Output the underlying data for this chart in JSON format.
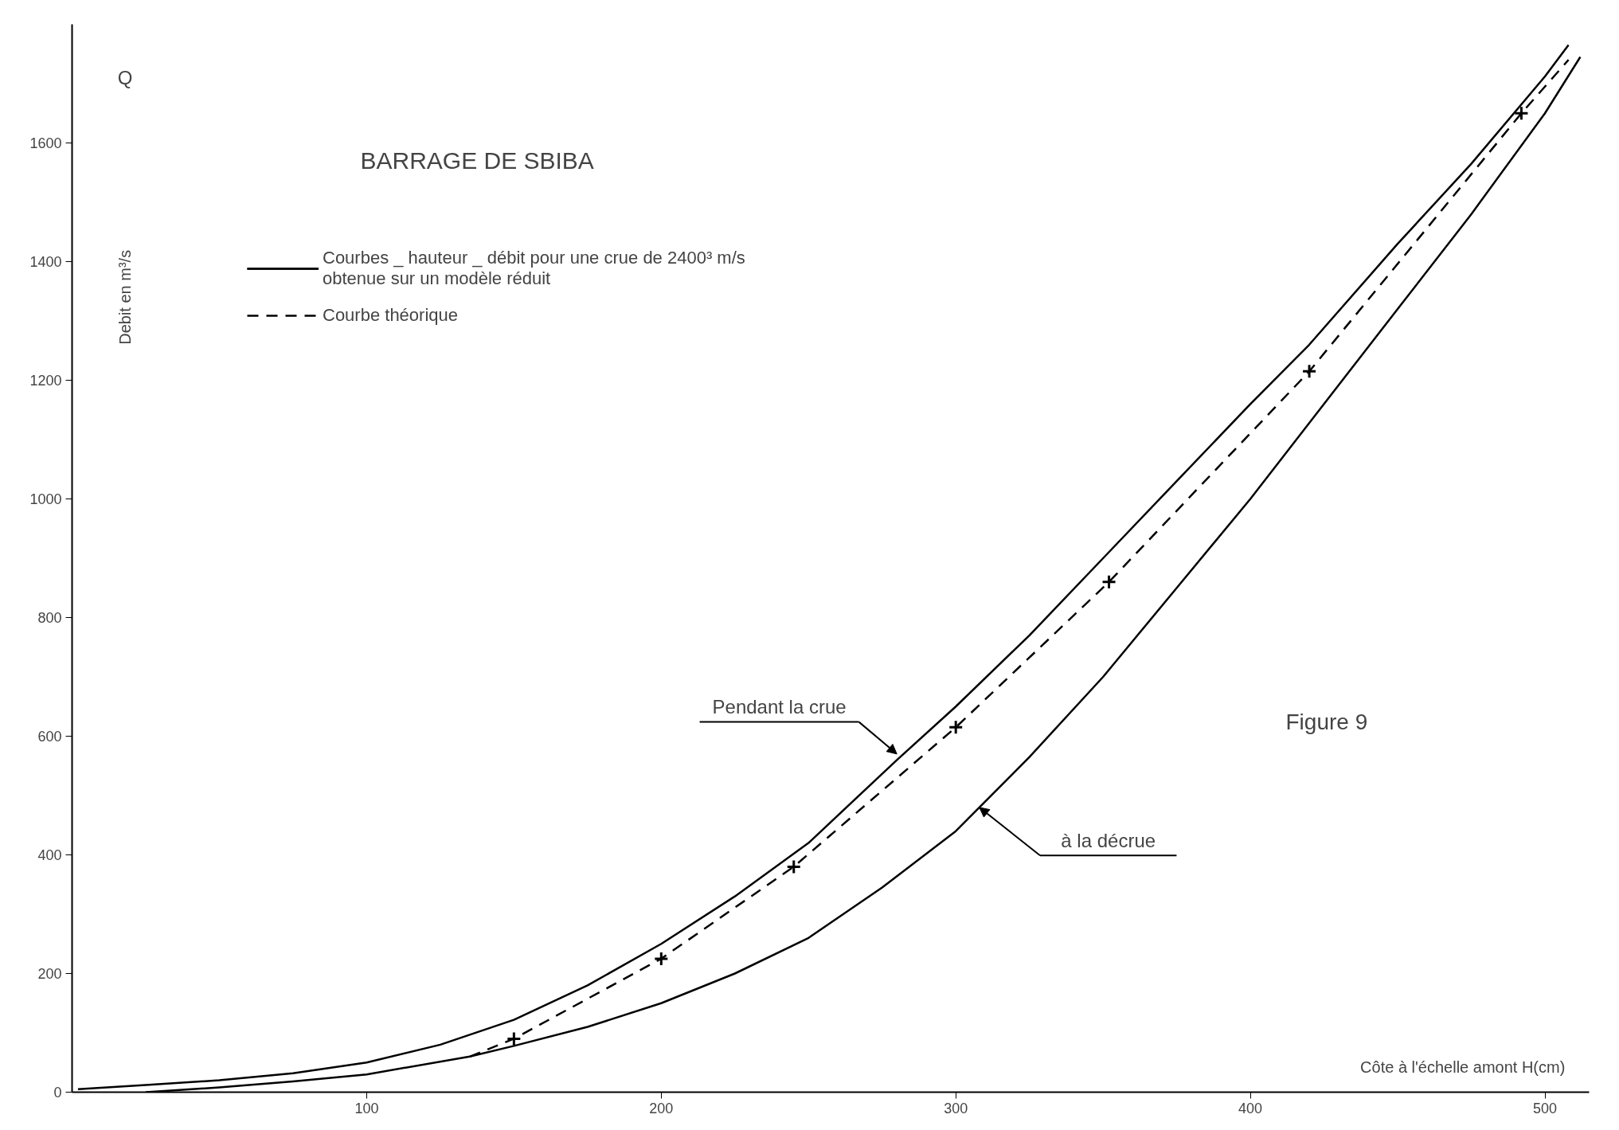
{
  "chart_data": {
    "type": "line",
    "title": "BARRAGE DE SBIBA",
    "xlabel": "Côte à l'échelle amont   H(cm)",
    "ylabel": "Debit en m³/s",
    "xlim": [
      0,
      515
    ],
    "ylim": [
      0,
      1800
    ],
    "xticks": [
      100,
      200,
      300,
      400,
      500
    ],
    "yticks": [
      0,
      200,
      400,
      600,
      800,
      1000,
      1200,
      1400,
      1600
    ],
    "grid": false,
    "legend": "top left",
    "series": [
      {
        "color": "#000000",
        "line_style": "solid",
        "x": [
          2,
          25,
          50,
          75,
          100,
          125,
          150,
          175,
          200,
          225,
          250,
          280,
          300,
          325,
          350,
          375,
          400,
          420,
          450,
          475,
          500,
          508
        ],
        "values": [
          5,
          12,
          20,
          32,
          50,
          80,
          122,
          180,
          250,
          330,
          420,
          560,
          650,
          770,
          900,
          1030,
          1160,
          1260,
          1430,
          1565,
          1712,
          1765
        ]
      },
      {
        "color": "#000000",
        "line_style": "solid",
        "x": [
          25,
          50,
          75,
          100,
          135,
          150,
          175,
          200,
          225,
          250,
          275,
          300,
          325,
          350,
          375,
          400,
          425,
          450,
          475,
          500,
          512
        ],
        "values": [
          0,
          8,
          18,
          30,
          60,
          78,
          110,
          150,
          200,
          260,
          345,
          440,
          565,
          700,
          850,
          1000,
          1160,
          1320,
          1480,
          1650,
          1745
        ]
      },
      {
        "name": "Courbe théorique",
        "color": "#000000",
        "line_style": "dashed",
        "x": [
          135,
          150,
          200,
          245,
          300,
          352,
          420,
          492,
          508
        ],
        "values": [
          60,
          90,
          225,
          380,
          615,
          860,
          1215,
          1650,
          1740
        ]
      },
      {
        "type": "scatter",
        "marker": "cross",
        "color": "#000000",
        "x": [
          150,
          200,
          245,
          300,
          352,
          420,
          492
        ],
        "values": [
          90,
          225,
          380,
          615,
          860,
          1215,
          1650
        ]
      }
    ],
    "annotations": [
      "Courbes _ hauteur _ débit pour une crue de 2400³ m/s\nobtenue sur un modèle réduit",
      "Figure 9",
      "Q",
      {
        "text": "Pendant la crue",
        "x": 280,
        "y": 570
      },
      {
        "text": "à la décrue",
        "x": 308,
        "y": 480
      }
    ]
  }
}
